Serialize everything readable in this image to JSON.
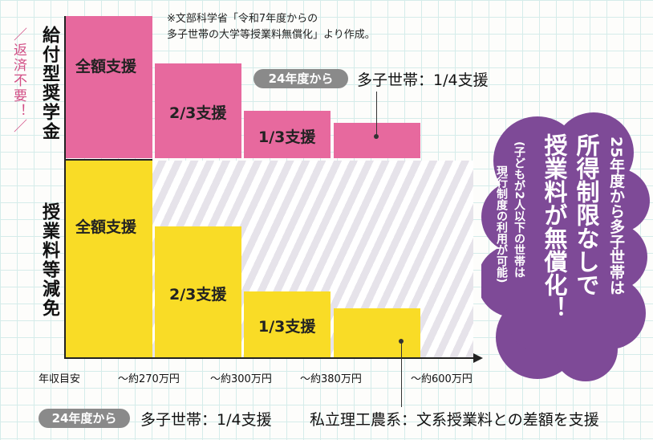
{
  "source_note": {
    "line1": "※文部科学省「令和7年度からの",
    "line2": "多子世帯の大学等授業料無償化」より作成。"
  },
  "labels": {
    "scholarship": "給付型奨学金",
    "scholarship_sub": "／返済不要！／",
    "tuition": "授業料等減免",
    "x_axis": "年収目安"
  },
  "callouts": {
    "top_badge": "24年度から",
    "top_text": "多子世帯：1/4支援",
    "bottom_badge": "24年度から",
    "bottom_text1": "多子世帯：1/4支援",
    "bottom_text2": "私立理工農系：文系授業料との差額を支援"
  },
  "cloud": {
    "line1": "25年度から多子世帯は",
    "line2": "所得制限なしで",
    "line3": "授業料が無償化！",
    "line4": "(子どもが2人以下の世帯は",
    "line5": "現行制度の利用が可能)"
  },
  "colors": {
    "scholarship": "#e7699e",
    "tuition": "#f9dc26",
    "cloud": "#7e4a97",
    "badge": "#8a8a8a"
  },
  "chart_data": {
    "type": "bar",
    "categories": [
      "〜約270万円",
      "〜約300万円",
      "〜約380万円",
      "〜約600万円"
    ],
    "series": [
      {
        "name": "給付型奨学金",
        "values": [
          1,
          0.6667,
          0.3333,
          0.25
        ],
        "labels": [
          "全額支援",
          "2/3支援",
          "1/3支援",
          ""
        ]
      },
      {
        "name": "授業料等減免",
        "values": [
          1,
          0.6667,
          0.3333,
          0.25
        ],
        "labels": [
          "全額支援",
          "2/3支援",
          "1/3支援",
          ""
        ]
      }
    ],
    "ylim": [
      0,
      1
    ]
  }
}
